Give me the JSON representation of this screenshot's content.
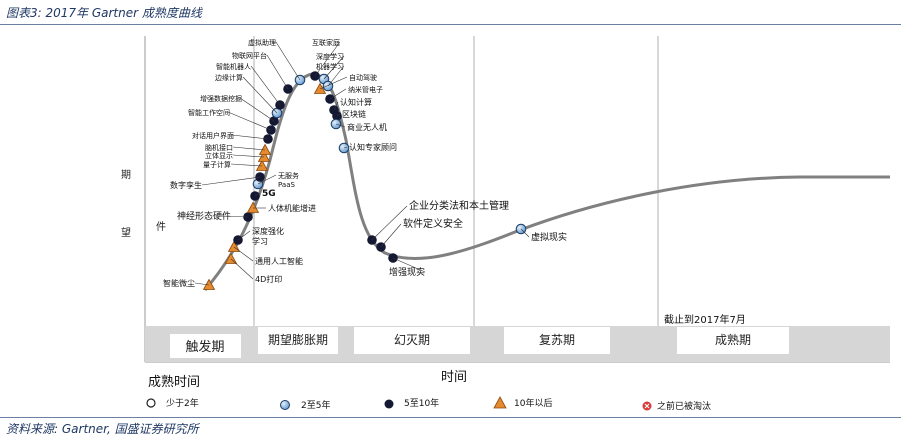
{
  "caption": "图表3: 2017年 Gartner 成熟度曲线",
  "source": "资料来源: Gartner, 国盛证券研究所",
  "y_axis": {
    "char1": "期",
    "char2": "望",
    "char3": "件"
  },
  "x_axis": {
    "label": "时间",
    "left_label": "成熟时间"
  },
  "cutoff_note": "截止到2017年7月",
  "phases": [
    "触发期",
    "期望膨胀期",
    "幻灭期",
    "复苏期",
    "成熟期"
  ],
  "legend": [
    {
      "symbol": "open-circle",
      "label": "少于2年"
    },
    {
      "symbol": "light-circle",
      "label": "2至5年"
    },
    {
      "symbol": "dark-circle",
      "label": "5至10年"
    },
    {
      "symbol": "triangle",
      "label": "10年以后"
    },
    {
      "symbol": "cross-circle",
      "label": "之前已被淘汰"
    }
  ],
  "technologies": [
    {
      "label": "智能微尘",
      "symbol": "triangle"
    },
    {
      "label": "4D打印",
      "symbol": "triangle"
    },
    {
      "label": "通用人工智能",
      "symbol": "triangle"
    },
    {
      "label": "深度强化学习",
      "symbol": "dark-circle"
    },
    {
      "label": "神经形态硬件",
      "symbol": "dark-circle"
    },
    {
      "label": "人体机能增进",
      "symbol": "triangle"
    },
    {
      "label": "5G",
      "symbol": "dark-circle"
    },
    {
      "label": "无服务PaaS",
      "symbol": "light-circle"
    },
    {
      "label": "数字孪生",
      "symbol": "dark-circle"
    },
    {
      "label": "量子计算",
      "symbol": "triangle"
    },
    {
      "label": "立体显示",
      "symbol": "triangle"
    },
    {
      "label": "脑机接口",
      "symbol": "triangle"
    },
    {
      "label": "对话用户界面",
      "symbol": "dark-circle"
    },
    {
      "label": "智能工作空间",
      "symbol": "dark-circle"
    },
    {
      "label": "增强数据挖掘",
      "symbol": "dark-circle"
    },
    {
      "label": "边缘计算",
      "symbol": "light-circle"
    },
    {
      "label": "智能机器人",
      "symbol": "dark-circle"
    },
    {
      "label": "物联网平台",
      "symbol": "dark-circle"
    },
    {
      "label": "虚拟助理",
      "symbol": "light-circle"
    },
    {
      "label": "互联家庭",
      "symbol": "dark-circle"
    },
    {
      "label": "深度学习",
      "symbol": "light-circle"
    },
    {
      "label": "机器学习",
      "symbol": "light-circle"
    },
    {
      "label": "自动驾驶",
      "symbol": "triangle"
    },
    {
      "label": "纳米管电子",
      "symbol": "dark-circle"
    },
    {
      "label": "认知计算",
      "symbol": "dark-circle"
    },
    {
      "label": "区块链",
      "symbol": "dark-circle"
    },
    {
      "label": "商业无人机",
      "symbol": "light-circle"
    },
    {
      "label": "认知专家顾问",
      "symbol": "light-circle"
    },
    {
      "label": "企业分类法和本土管理",
      "symbol": "dark-circle"
    },
    {
      "label": "软件定义安全",
      "symbol": "dark-circle"
    },
    {
      "label": "增强现实",
      "symbol": "dark-circle"
    },
    {
      "label": "虚拟现实",
      "symbol": "light-circle"
    }
  ]
}
